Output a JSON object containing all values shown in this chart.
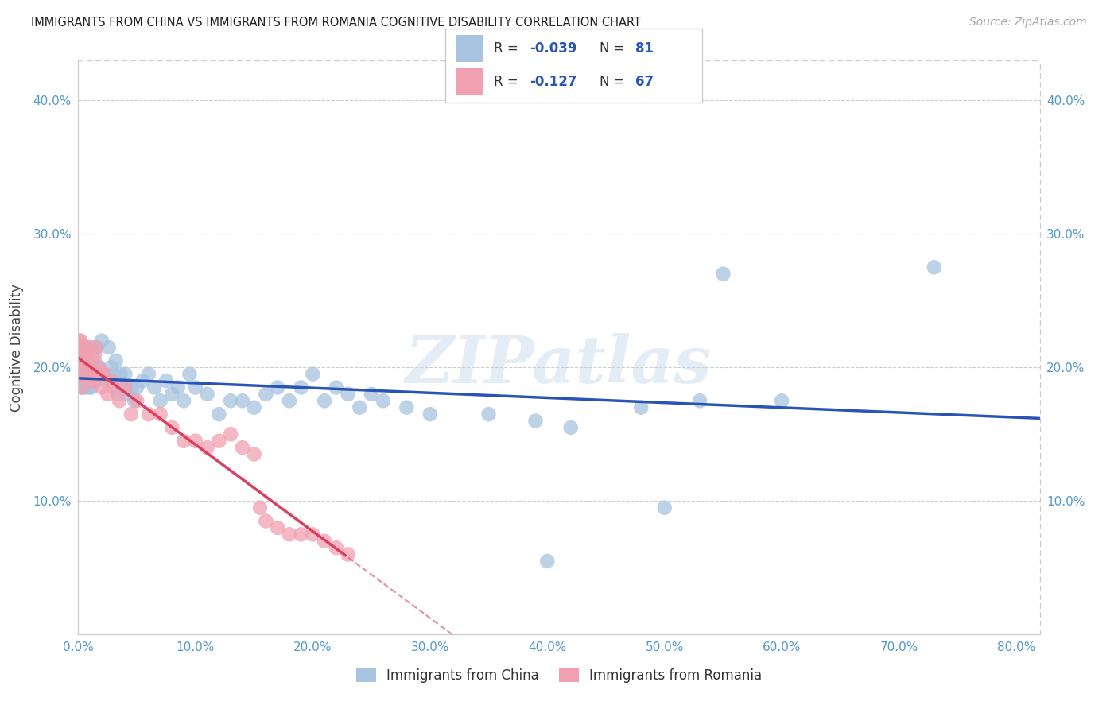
{
  "title": "IMMIGRANTS FROM CHINA VS IMMIGRANTS FROM ROMANIA COGNITIVE DISABILITY CORRELATION CHART",
  "source": "Source: ZipAtlas.com",
  "ylabel": "Cognitive Disability",
  "xlim": [
    0.0,
    0.82
  ],
  "ylim": [
    0.0,
    0.43
  ],
  "xticks": [
    0.0,
    0.1,
    0.2,
    0.3,
    0.4,
    0.5,
    0.6,
    0.7,
    0.8
  ],
  "yticks": [
    0.1,
    0.2,
    0.3,
    0.4
  ],
  "xtick_labels": [
    "0.0%",
    "10.0%",
    "20.0%",
    "30.0%",
    "40.0%",
    "50.0%",
    "60.0%",
    "70.0%",
    "80.0%"
  ],
  "ytick_labels": [
    "10.0%",
    "20.0%",
    "30.0%",
    "40.0%"
  ],
  "china_R": -0.039,
  "china_N": 81,
  "romania_R": -0.127,
  "romania_N": 67,
  "china_color": "#a8c4e0",
  "romania_color": "#f0a0b0",
  "china_line_color": "#2855b5",
  "romania_line_color": "#d94060",
  "legend_china_label": "Immigrants from China",
  "legend_romania_label": "Immigrants from Romania",
  "watermark": "ZIPatlas",
  "china_x": [
    0.002,
    0.003,
    0.003,
    0.004,
    0.004,
    0.005,
    0.005,
    0.006,
    0.006,
    0.007,
    0.007,
    0.008,
    0.008,
    0.009,
    0.009,
    0.01,
    0.01,
    0.011,
    0.011,
    0.012,
    0.012,
    0.013,
    0.013,
    0.014,
    0.015,
    0.016,
    0.017,
    0.018,
    0.02,
    0.022,
    0.024,
    0.026,
    0.028,
    0.03,
    0.032,
    0.034,
    0.036,
    0.038,
    0.04,
    0.042,
    0.045,
    0.048,
    0.05,
    0.055,
    0.06,
    0.065,
    0.07,
    0.075,
    0.08,
    0.085,
    0.09,
    0.095,
    0.1,
    0.11,
    0.12,
    0.13,
    0.14,
    0.15,
    0.16,
    0.17,
    0.18,
    0.19,
    0.2,
    0.21,
    0.22,
    0.23,
    0.24,
    0.25,
    0.26,
    0.28,
    0.3,
    0.35,
    0.39,
    0.42,
    0.48,
    0.5,
    0.53,
    0.55,
    0.6,
    0.73,
    0.4
  ],
  "china_y": [
    0.195,
    0.2,
    0.185,
    0.195,
    0.21,
    0.2,
    0.215,
    0.195,
    0.19,
    0.205,
    0.185,
    0.2,
    0.195,
    0.21,
    0.185,
    0.195,
    0.2,
    0.185,
    0.195,
    0.2,
    0.215,
    0.19,
    0.195,
    0.205,
    0.19,
    0.215,
    0.195,
    0.2,
    0.22,
    0.195,
    0.19,
    0.215,
    0.2,
    0.195,
    0.205,
    0.18,
    0.195,
    0.185,
    0.195,
    0.18,
    0.185,
    0.175,
    0.185,
    0.19,
    0.195,
    0.185,
    0.175,
    0.19,
    0.18,
    0.185,
    0.175,
    0.195,
    0.185,
    0.18,
    0.165,
    0.175,
    0.175,
    0.17,
    0.18,
    0.185,
    0.175,
    0.185,
    0.195,
    0.175,
    0.185,
    0.18,
    0.17,
    0.18,
    0.175,
    0.17,
    0.165,
    0.165,
    0.16,
    0.155,
    0.17,
    0.095,
    0.175,
    0.27,
    0.175,
    0.275,
    0.055
  ],
  "romania_x": [
    0.001,
    0.001,
    0.002,
    0.002,
    0.002,
    0.002,
    0.003,
    0.003,
    0.003,
    0.003,
    0.003,
    0.004,
    0.004,
    0.004,
    0.004,
    0.005,
    0.005,
    0.005,
    0.005,
    0.006,
    0.006,
    0.006,
    0.007,
    0.007,
    0.007,
    0.008,
    0.008,
    0.009,
    0.009,
    0.01,
    0.01,
    0.011,
    0.012,
    0.013,
    0.014,
    0.015,
    0.016,
    0.017,
    0.018,
    0.02,
    0.022,
    0.025,
    0.028,
    0.03,
    0.035,
    0.04,
    0.045,
    0.05,
    0.06,
    0.07,
    0.08,
    0.09,
    0.1,
    0.11,
    0.12,
    0.13,
    0.14,
    0.15,
    0.155,
    0.16,
    0.17,
    0.18,
    0.19,
    0.2,
    0.21,
    0.22,
    0.23
  ],
  "romania_y": [
    0.22,
    0.195,
    0.21,
    0.22,
    0.215,
    0.205,
    0.215,
    0.2,
    0.21,
    0.195,
    0.185,
    0.205,
    0.215,
    0.2,
    0.195,
    0.215,
    0.205,
    0.195,
    0.2,
    0.215,
    0.195,
    0.205,
    0.2,
    0.195,
    0.21,
    0.2,
    0.195,
    0.215,
    0.195,
    0.205,
    0.195,
    0.19,
    0.195,
    0.19,
    0.21,
    0.215,
    0.195,
    0.2,
    0.195,
    0.185,
    0.195,
    0.18,
    0.19,
    0.185,
    0.175,
    0.185,
    0.165,
    0.175,
    0.165,
    0.165,
    0.155,
    0.145,
    0.145,
    0.14,
    0.145,
    0.15,
    0.14,
    0.135,
    0.095,
    0.085,
    0.08,
    0.075,
    0.075,
    0.075,
    0.07,
    0.065,
    0.06
  ]
}
